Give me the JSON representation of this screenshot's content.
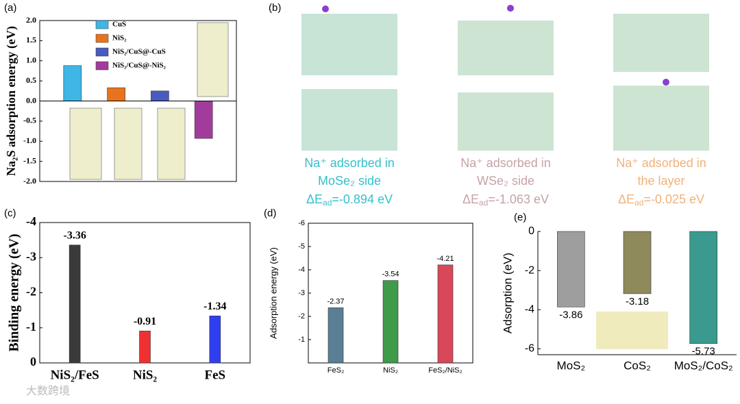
{
  "chart_data": [
    {
      "type": "bar",
      "label": "(a)",
      "ylabel": "Na₂S adsorption energy (eV)",
      "categories": [
        null
      ],
      "series": [
        {
          "name": "CuS",
          "color": "#3fb6e6",
          "values": [
            0.88
          ]
        },
        {
          "name": "NiS₂",
          "color": "#e8731f",
          "values": [
            0.33
          ]
        },
        {
          "name": "NiS₂/CuS@-CuS",
          "color": "#4a5bbf",
          "values": [
            0.25
          ]
        },
        {
          "name": "NiS₂/CuS@-NiS₂",
          "color": "#a23c9c",
          "values": [
            -0.93
          ]
        }
      ],
      "ylim": [
        -2,
        2
      ],
      "yticks": [
        {
          "value": -2,
          "label": "-2.0"
        },
        {
          "value": -1.5,
          "label": "-1.5"
        },
        {
          "value": -1,
          "label": "-1.0"
        },
        {
          "value": -0.5,
          "label": "-0.5"
        },
        {
          "value": 0,
          "label": "0.0"
        },
        {
          "value": 0.5,
          "label": "0.5"
        },
        {
          "value": 1,
          "label": "1.0"
        },
        {
          "value": 1.5,
          "label": "1.5"
        },
        {
          "value": 2,
          "label": "2.0"
        }
      ]
    },
    {
      "type": "bar",
      "label": "(c)",
      "ylabel": "Binding energy (eV)",
      "categories": [
        "NiS₂/FeS",
        "NiS₂",
        "FeS"
      ],
      "values": [
        -3.36,
        -0.91,
        -1.34
      ],
      "colors": [
        "#3a3a3a",
        "#f03030",
        "#2f3ff0"
      ],
      "ylim": [
        0,
        -4
      ],
      "yticks": [
        -4,
        -3,
        -2,
        -1,
        0
      ]
    },
    {
      "type": "bar",
      "label": "(d)",
      "ylabel": "Adsorption energy (eV)",
      "categories": [
        "FeS₂",
        "NiS₂",
        "FeS₂/NiS₂"
      ],
      "values": [
        -2.37,
        -3.54,
        -4.21
      ],
      "colors": [
        "#5a7f94",
        "#3f9a4a",
        "#d9485a"
      ],
      "ylim": [
        0,
        -6
      ],
      "yticks": [
        -6,
        -5,
        -4,
        -3,
        -2,
        -1
      ]
    },
    {
      "type": "bar",
      "label": "(e)",
      "ylabel": "Adsorption (eV)",
      "categories": [
        "MoS₂",
        "CoS₂",
        "MoS₂/CoS₂"
      ],
      "values": [
        -3.86,
        -3.18,
        -5.73
      ],
      "colors": [
        "#9e9e9e",
        "#8e8a5c",
        "#3a9a8e"
      ],
      "ylim": [
        -6.3,
        0
      ],
      "yticks": [
        -6,
        -4,
        -2,
        0
      ]
    }
  ],
  "panel_b": {
    "label": "(b)",
    "captions": [
      {
        "lines": [
          "Na⁺ adsorbed in",
          "MoSe₂ side"
        ],
        "energy": {
          "pre": "ΔE",
          "sub": "ad",
          "post": "=-0.894 eV"
        },
        "color": "#35bfcc"
      },
      {
        "lines": [
          "Na⁺ adsorbed in",
          "WSe₂ side"
        ],
        "energy": {
          "pre": "ΔE",
          "sub": "ad",
          "post": "=-1.063 eV"
        },
        "color": "#c6a2a6"
      },
      {
        "lines": [
          "Na⁺ adsorbed in",
          "the layer"
        ],
        "energy": {
          "pre": "ΔE",
          "sub": "ad",
          "post": "=-0.025 eV"
        },
        "color": "#f0b27a"
      }
    ]
  },
  "watermark": "大数跨境"
}
